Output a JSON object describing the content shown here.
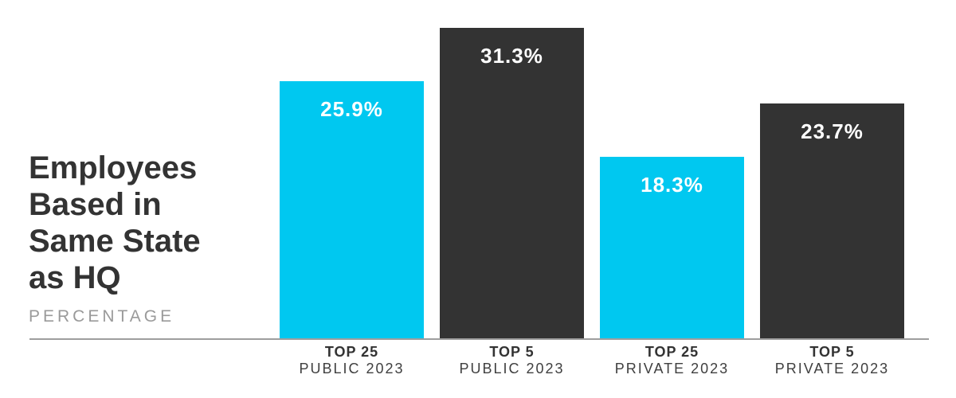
{
  "title": {
    "text": "Employees\nBased in\nSame State\nas HQ",
    "subtitle": "PERCENTAGE"
  },
  "colors": {
    "accent_cyan": "#00c8f0",
    "dark_bar": "#333333",
    "axis_line": "#9e9e9e",
    "title_text": "#333333",
    "subtitle_text": "#9a9a9a",
    "value_text": "#ffffff"
  },
  "chart_data": {
    "type": "bar",
    "title": "Employees Based in Same State as HQ",
    "ylabel": "PERCENTAGE",
    "xlabel": "",
    "unit": "%",
    "ylim": [
      0,
      34
    ],
    "grid": false,
    "legend": false,
    "categories": [
      "TOP 25 PUBLIC 2023",
      "TOP 5 PUBLIC 2023",
      "TOP 25 PRIVATE 2023",
      "TOP 5 PRIVATE 2023"
    ],
    "values": [
      25.9,
      31.3,
      18.3,
      23.7
    ],
    "bars": [
      {
        "category": "TOP 25",
        "period": "PUBLIC 2023",
        "value": 25.9,
        "display": "25.9%",
        "color": "#00c8f0"
      },
      {
        "category": "TOP 5",
        "period": "PUBLIC 2023",
        "value": 31.3,
        "display": "31.3%",
        "color": "#333333"
      },
      {
        "category": "TOP 25",
        "period": "PRIVATE 2023",
        "value": 18.3,
        "display": "18.3%",
        "color": "#00c8f0"
      },
      {
        "category": "TOP 5",
        "period": "PRIVATE 2023",
        "value": 23.7,
        "display": "23.7%",
        "color": "#333333"
      }
    ]
  }
}
